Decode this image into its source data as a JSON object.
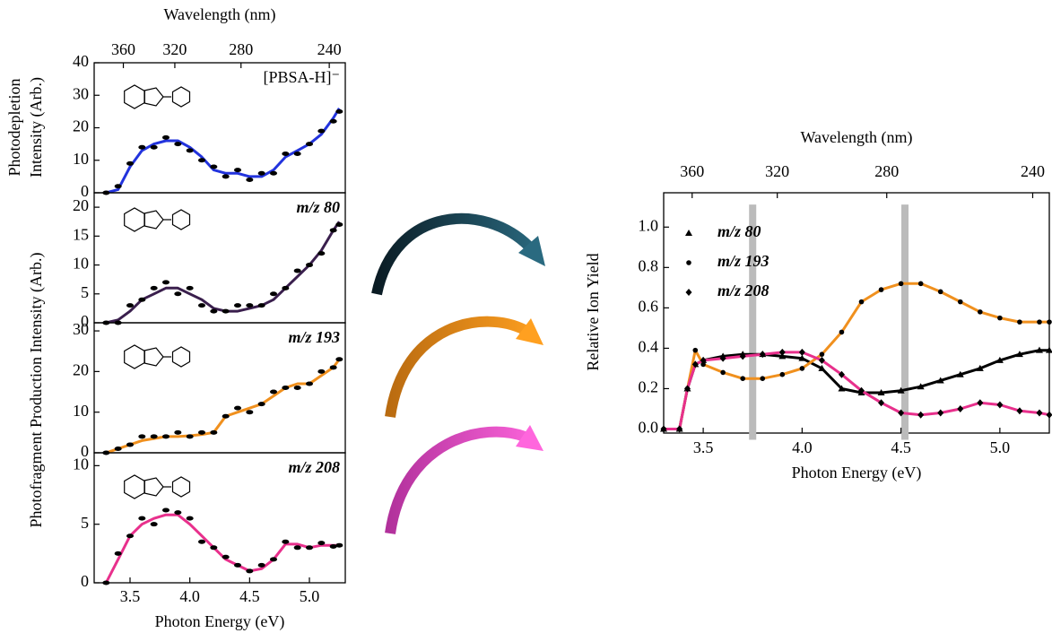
{
  "chart_data": [
    {
      "type": "line",
      "x2label": "Wavelength (nm)",
      "x2ticks": [
        360,
        320,
        280,
        240
      ],
      "ylabel": [
        "Photodepletion",
        "Intensity (Arb.)"
      ],
      "xlim": [
        3.2,
        5.3
      ],
      "ylim": [
        0,
        40
      ],
      "yticks": [
        0,
        10,
        20,
        30,
        40
      ],
      "x": [
        3.3,
        3.4,
        3.5,
        3.6,
        3.7,
        3.8,
        3.9,
        4.0,
        4.1,
        4.2,
        4.3,
        4.4,
        4.5,
        4.6,
        4.7,
        4.8,
        4.9,
        5.0,
        5.1,
        5.2,
        5.25
      ],
      "series": [
        {
          "name": "[PBSA-H]⁻",
          "color": "#2233dd",
          "values": [
            0,
            1,
            8,
            13,
            15,
            16,
            16,
            14,
            11,
            7,
            6,
            6,
            5,
            5,
            7,
            11,
            13,
            15,
            18,
            23,
            26
          ],
          "points": [
            0,
            2,
            9,
            14,
            14,
            17,
            15,
            13,
            10,
            8,
            5,
            7,
            4,
            6,
            6,
            12,
            12,
            15,
            19,
            22,
            25
          ]
        }
      ]
    },
    {
      "type": "line",
      "ylabel": "Photofragment Production Intensity (Arb.)",
      "xlim": [
        3.2,
        5.3
      ],
      "ylim": [
        0,
        22.5
      ],
      "yticks": [
        0,
        5,
        10,
        15,
        20
      ],
      "x": [
        3.3,
        3.4,
        3.5,
        3.6,
        3.7,
        3.8,
        3.9,
        4.0,
        4.1,
        4.2,
        4.3,
        4.4,
        4.5,
        4.6,
        4.7,
        4.8,
        4.9,
        5.0,
        5.1,
        5.2,
        5.25
      ],
      "series": [
        {
          "name": "m/z 80",
          "color": "#3a1f4d",
          "values": [
            0,
            0.5,
            2,
            4,
            5,
            6,
            6,
            5,
            4,
            2.5,
            2,
            2,
            2.5,
            3,
            4,
            6,
            8,
            10,
            12.5,
            16,
            17.5
          ],
          "points": [
            0,
            0,
            3,
            4,
            6,
            7,
            5,
            6,
            3,
            2,
            2,
            3,
            3,
            3,
            5,
            6,
            9,
            10,
            12,
            16,
            17
          ]
        }
      ]
    },
    {
      "type": "line",
      "xlim": [
        3.2,
        5.3
      ],
      "ylim": [
        0,
        32
      ],
      "yticks": [
        0,
        10,
        20,
        30
      ],
      "x": [
        3.3,
        3.4,
        3.5,
        3.6,
        3.7,
        3.8,
        3.9,
        4.0,
        4.1,
        4.2,
        4.3,
        4.4,
        4.5,
        4.6,
        4.7,
        4.8,
        4.9,
        5.0,
        5.1,
        5.2,
        5.25
      ],
      "series": [
        {
          "name": "m/z 193",
          "color": "#f0901e",
          "values": [
            0,
            1,
            2,
            3,
            3.5,
            4,
            4,
            4.2,
            4.5,
            5,
            9,
            10,
            11,
            12,
            14,
            16,
            17,
            17,
            19,
            21,
            23
          ],
          "points": [
            0,
            1,
            2,
            4,
            4,
            4,
            5,
            4,
            5,
            5,
            9,
            11,
            10,
            12,
            15,
            16,
            16,
            17,
            20,
            21,
            23
          ]
        }
      ]
    },
    {
      "type": "line",
      "xlabel": "Photon Energy (eV)",
      "xticks": [
        3.5,
        {
          "value": 4,
          "label": "4.0"
        },
        4.5,
        {
          "value": 5,
          "label": "5.0"
        }
      ],
      "xlim": [
        3.2,
        5.3
      ],
      "ylim": [
        0,
        11.1
      ],
      "yticks": [
        0,
        5,
        10
      ],
      "x": [
        3.3,
        3.4,
        3.5,
        3.6,
        3.7,
        3.8,
        3.9,
        4.0,
        4.1,
        4.2,
        4.3,
        4.4,
        4.5,
        4.6,
        4.7,
        4.8,
        4.9,
        5.0,
        5.1,
        5.2,
        5.25
      ],
      "series": [
        {
          "name": "m/z 208",
          "color": "#e8308c",
          "values": [
            0,
            2,
            4,
            5,
            5.5,
            5.8,
            5.8,
            5,
            4,
            3,
            2,
            1.5,
            1,
            1.2,
            2,
            3.3,
            3.3,
            3,
            3.2,
            3.2,
            3.2
          ],
          "points": [
            0,
            2.5,
            4,
            5.5,
            5,
            6.2,
            6,
            5.5,
            3.5,
            3,
            2.2,
            1.5,
            1,
            1.5,
            2,
            3.5,
            3,
            3,
            3.4,
            3.1,
            3.2
          ]
        }
      ]
    },
    {
      "type": "line",
      "x2label": "Wavelength (nm)",
      "x2ticks": [
        360,
        320,
        280,
        240
      ],
      "xlabel": "Photon Energy (eV)",
      "ylabel": "Relative Ion Yield",
      "xlim": [
        3.3,
        5.25
      ],
      "xticks": [
        3.5,
        {
          "value": 4,
          "label": "4.0"
        },
        4.5,
        {
          "value": 5,
          "label": "5.0"
        }
      ],
      "ylim": [
        -0.02,
        1.17
      ],
      "yticks": [
        {
          "value": 0,
          "label": "0.0"
        },
        0.2,
        0.4,
        0.6,
        0.8,
        {
          "value": 1,
          "label": "1.0"
        }
      ],
      "vlines": [
        3.75,
        4.52
      ],
      "x": [
        3.3,
        3.38,
        3.42,
        3.46,
        3.5,
        3.6,
        3.7,
        3.8,
        3.9,
        4.0,
        4.1,
        4.2,
        4.3,
        4.4,
        4.5,
        4.6,
        4.7,
        4.8,
        4.9,
        5.0,
        5.1,
        5.2,
        5.25
      ],
      "series": [
        {
          "name": "m/z 80",
          "color": "#000000",
          "marker": "triangle",
          "values": [
            0,
            0,
            0.2,
            0.32,
            0.34,
            0.36,
            0.37,
            0.37,
            0.36,
            0.35,
            0.3,
            0.2,
            0.18,
            0.18,
            0.19,
            0.21,
            0.24,
            0.27,
            0.3,
            0.34,
            0.37,
            0.39,
            0.39
          ]
        },
        {
          "name": "m/z 193",
          "color": "#f0901e",
          "marker": "circle",
          "values": [
            0,
            0,
            0.2,
            0.39,
            0.32,
            0.28,
            0.25,
            0.25,
            0.27,
            0.3,
            0.37,
            0.48,
            0.63,
            0.69,
            0.72,
            0.72,
            0.68,
            0.63,
            0.58,
            0.55,
            0.53,
            0.53,
            0.53
          ]
        },
        {
          "name": "m/z 208",
          "color": "#e8308c",
          "marker": "diamond",
          "values": [
            0,
            0,
            0.2,
            0.32,
            0.34,
            0.35,
            0.36,
            0.37,
            0.38,
            0.38,
            0.34,
            0.27,
            0.19,
            0.13,
            0.08,
            0.07,
            0.08,
            0.1,
            0.13,
            0.12,
            0.09,
            0.08,
            0.07
          ]
        }
      ]
    }
  ]
}
